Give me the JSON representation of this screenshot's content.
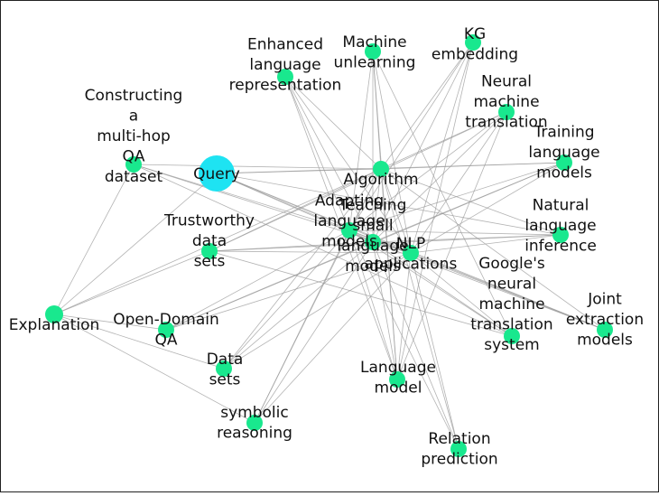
{
  "graph": {
    "colors": {
      "query_node": "#1ee3f2",
      "concept_node": "#19e88e",
      "edge": "#9a9a9a",
      "frame": "#222222"
    },
    "nodes": [
      {
        "id": "query",
        "lines": [
          "Query"
        ],
        "kind": "query"
      },
      {
        "id": "constructing",
        "lines": [
          "Constructing",
          "a",
          "multi-hop",
          "QA",
          "dataset"
        ],
        "kind": "concept"
      },
      {
        "id": "machine-unlearning",
        "lines": [
          "Machine",
          "unlearning"
        ],
        "kind": "concept"
      },
      {
        "id": "kg-embedding",
        "lines": [
          "KG",
          "embedding"
        ],
        "kind": "concept"
      },
      {
        "id": "enhanced",
        "lines": [
          "Enhanced",
          "language",
          "representation"
        ],
        "kind": "concept"
      },
      {
        "id": "neural-mt",
        "lines": [
          "Neural",
          "machine",
          "translation"
        ],
        "kind": "concept"
      },
      {
        "id": "training-lm",
        "lines": [
          "Training",
          "language",
          "models"
        ],
        "kind": "concept"
      },
      {
        "id": "algorithm",
        "lines": [
          "Algorithm"
        ],
        "kind": "concept"
      },
      {
        "id": "natural-language-inference",
        "lines": [
          "Natural",
          "language",
          "inference"
        ],
        "kind": "concept"
      },
      {
        "id": "trustworthy",
        "lines": [
          "Trustworthy",
          "data",
          "sets"
        ],
        "kind": "concept"
      },
      {
        "id": "adapting",
        "lines": [
          "Adapting",
          "language",
          "models"
        ],
        "kind": "concept"
      },
      {
        "id": "teaching-small",
        "lines": [
          "Teaching",
          "small",
          "language",
          "models"
        ],
        "kind": "concept"
      },
      {
        "id": "nlp-applications",
        "lines": [
          "NLP",
          "applications"
        ],
        "kind": "concept"
      },
      {
        "id": "googles-nmt",
        "lines": [
          "Google's",
          "neural",
          "machine",
          "translation",
          "system"
        ],
        "kind": "concept"
      },
      {
        "id": "joint-extraction",
        "lines": [
          "Joint",
          "extraction",
          "models"
        ],
        "kind": "concept"
      },
      {
        "id": "explanation",
        "lines": [
          "Explanation"
        ],
        "kind": "concept"
      },
      {
        "id": "open-domain-qa",
        "lines": [
          "Open-Domain",
          "QA"
        ],
        "kind": "concept"
      },
      {
        "id": "data-sets",
        "lines": [
          "Data",
          "sets"
        ],
        "kind": "concept"
      },
      {
        "id": "language-model",
        "lines": [
          "Language",
          "model"
        ],
        "kind": "concept"
      },
      {
        "id": "symbolic-reasoning",
        "lines": [
          "symbolic",
          "reasoning"
        ],
        "kind": "concept"
      },
      {
        "id": "relation-prediction",
        "lines": [
          "Relation",
          "prediction"
        ],
        "kind": "concept"
      }
    ],
    "edges": [
      [
        "query",
        "algorithm"
      ],
      [
        "query",
        "adapting"
      ],
      [
        "query",
        "teaching-small"
      ],
      [
        "query",
        "nlp-applications"
      ],
      [
        "query",
        "training-lm"
      ],
      [
        "query",
        "natural-language-inference"
      ],
      [
        "query",
        "joint-extraction"
      ],
      [
        "query",
        "explanation"
      ],
      [
        "constructing",
        "algorithm"
      ],
      [
        "constructing",
        "adapting"
      ],
      [
        "constructing",
        "nlp-applications"
      ],
      [
        "constructing",
        "explanation"
      ],
      [
        "constructing",
        "googles-nmt"
      ],
      [
        "explanation",
        "trustworthy"
      ],
      [
        "explanation",
        "algorithm"
      ],
      [
        "explanation",
        "open-domain-qa"
      ],
      [
        "explanation",
        "symbolic-reasoning"
      ],
      [
        "explanation",
        "data-sets"
      ],
      [
        "trustworthy",
        "algorithm"
      ],
      [
        "trustworthy",
        "nlp-applications"
      ],
      [
        "trustworthy",
        "neural-mt"
      ],
      [
        "trustworthy",
        "natural-language-inference"
      ],
      [
        "trustworthy",
        "googles-nmt"
      ],
      [
        "trustworthy",
        "teaching-small"
      ],
      [
        "open-domain-qa",
        "nlp-applications"
      ],
      [
        "open-domain-qa",
        "adapting"
      ],
      [
        "open-domain-qa",
        "training-lm"
      ],
      [
        "open-domain-qa",
        "teaching-small"
      ],
      [
        "data-sets",
        "adapting"
      ],
      [
        "data-sets",
        "nlp-applications"
      ],
      [
        "data-sets",
        "algorithm"
      ],
      [
        "data-sets",
        "teaching-small"
      ],
      [
        "symbolic-reasoning",
        "algorithm"
      ],
      [
        "symbolic-reasoning",
        "adapting"
      ],
      [
        "symbolic-reasoning",
        "teaching-small"
      ],
      [
        "symbolic-reasoning",
        "nlp-applications"
      ],
      [
        "enhanced",
        "algorithm"
      ],
      [
        "enhanced",
        "adapting"
      ],
      [
        "enhanced",
        "teaching-small"
      ],
      [
        "enhanced",
        "nlp-applications"
      ],
      [
        "enhanced",
        "language-model"
      ],
      [
        "machine-unlearning",
        "algorithm"
      ],
      [
        "machine-unlearning",
        "adapting"
      ],
      [
        "machine-unlearning",
        "teaching-small"
      ],
      [
        "machine-unlearning",
        "nlp-applications"
      ],
      [
        "machine-unlearning",
        "language-model"
      ],
      [
        "machine-unlearning",
        "googles-nmt"
      ],
      [
        "kg-embedding",
        "algorithm"
      ],
      [
        "kg-embedding",
        "adapting"
      ],
      [
        "kg-embedding",
        "teaching-small"
      ],
      [
        "kg-embedding",
        "nlp-applications"
      ],
      [
        "kg-embedding",
        "language-model"
      ],
      [
        "neural-mt",
        "algorithm"
      ],
      [
        "neural-mt",
        "adapting"
      ],
      [
        "neural-mt",
        "teaching-small"
      ],
      [
        "neural-mt",
        "nlp-applications"
      ],
      [
        "neural-mt",
        "language-model"
      ],
      [
        "training-lm",
        "algorithm"
      ],
      [
        "training-lm",
        "adapting"
      ],
      [
        "training-lm",
        "teaching-small"
      ],
      [
        "training-lm",
        "nlp-applications"
      ],
      [
        "natural-language-inference",
        "adapting"
      ],
      [
        "natural-language-inference",
        "teaching-small"
      ],
      [
        "natural-language-inference",
        "nlp-applications"
      ],
      [
        "natural-language-inference",
        "algorithm"
      ],
      [
        "googles-nmt",
        "adapting"
      ],
      [
        "googles-nmt",
        "teaching-small"
      ],
      [
        "googles-nmt",
        "nlp-applications"
      ],
      [
        "joint-extraction",
        "adapting"
      ],
      [
        "joint-extraction",
        "teaching-small"
      ],
      [
        "joint-extraction",
        "nlp-applications"
      ],
      [
        "joint-extraction",
        "algorithm"
      ],
      [
        "language-model",
        "adapting"
      ],
      [
        "language-model",
        "teaching-small"
      ],
      [
        "language-model",
        "nlp-applications"
      ],
      [
        "language-model",
        "algorithm"
      ],
      [
        "relation-prediction",
        "adapting"
      ],
      [
        "relation-prediction",
        "teaching-small"
      ],
      [
        "relation-prediction",
        "nlp-applications"
      ],
      [
        "relation-prediction",
        "algorithm"
      ],
      [
        "algorithm",
        "adapting"
      ],
      [
        "algorithm",
        "teaching-small"
      ],
      [
        "algorithm",
        "nlp-applications"
      ],
      [
        "adapting",
        "teaching-small"
      ],
      [
        "adapting",
        "nlp-applications"
      ],
      [
        "teaching-small",
        "nlp-applications"
      ]
    ]
  }
}
